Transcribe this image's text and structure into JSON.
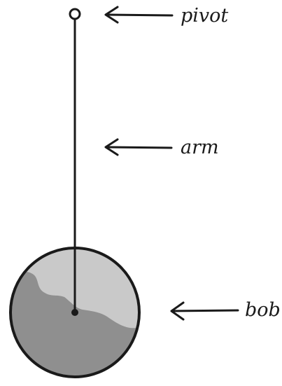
{
  "labels": {
    "pivot": "pivot",
    "arm": "arm",
    "bob": "bob"
  },
  "colors": {
    "ink": "#1a1a1a",
    "bob_light": "#c9c9c9",
    "bob_dark": "#8f8f8f",
    "background": "#ffffff"
  }
}
